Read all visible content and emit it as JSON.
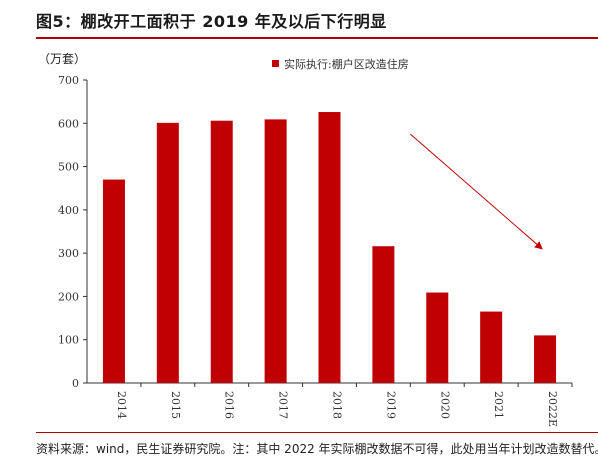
{
  "header": {
    "title": "图5：棚改开工面积于 2019 年及以后下行明显"
  },
  "footer": {
    "source": "资料来源：wind，民生证券研究院。注：其中 2022 年实际棚改数据不可得，此处用当年计划改造数替代。"
  },
  "colors": {
    "bar": "#c00000",
    "accent": "#b00000",
    "arrow": "#c00000"
  },
  "chart_data": {
    "type": "bar",
    "unit_label": "（万套）",
    "categories": [
      "2014",
      "2015",
      "2016",
      "2017",
      "2018",
      "2019",
      "2020",
      "2021",
      "2022E"
    ],
    "series": [
      {
        "name": "实际执行:棚户区改造住房",
        "values": [
          470,
          601,
          606,
          609,
          626,
          316,
          209,
          165,
          110
        ]
      }
    ],
    "ylim": [
      0,
      700
    ],
    "yticks": [
      0,
      100,
      200,
      300,
      400,
      500,
      600,
      700
    ],
    "legend_position": "top-right",
    "grid": false,
    "annotations": [
      "downward-trend-arrow"
    ]
  }
}
